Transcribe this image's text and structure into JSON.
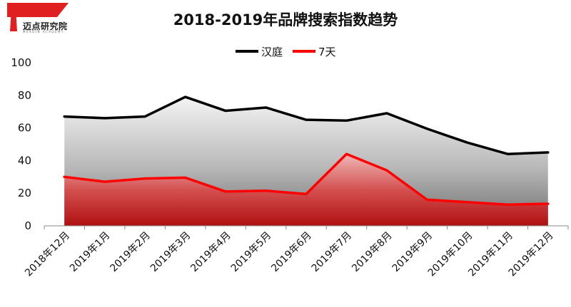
{
  "logo": {
    "text": "迈点研究院",
    "sub": "MEADIN ACADEMY"
  },
  "chart_data": {
    "type": "area",
    "title": "2018-2019年品牌搜索指数趋势",
    "categories": [
      "2018年12月",
      "2019年1月",
      "2019年2月",
      "2019年3月",
      "2019年4月",
      "2019年5月",
      "2019年6月",
      "2019年7月",
      "2019年8月",
      "2019年9月",
      "2019年10月",
      "2019年11月",
      "2019年12月"
    ],
    "series": [
      {
        "name": "汉庭",
        "color": "#000000",
        "values": [
          67,
          66,
          67,
          79,
          70.5,
          72.5,
          65,
          64.5,
          69,
          59.5,
          51,
          44,
          45
        ]
      },
      {
        "name": "7天",
        "color": "#ff0000",
        "values": [
          30,
          27,
          29,
          29.5,
          21,
          21.5,
          19.5,
          44,
          34,
          16,
          14.5,
          13,
          13.5
        ]
      }
    ],
    "ylim": [
      0,
      100
    ],
    "yticks": [
      0,
      20,
      40,
      60,
      80,
      100
    ],
    "legend": "top-center",
    "grid": false
  }
}
